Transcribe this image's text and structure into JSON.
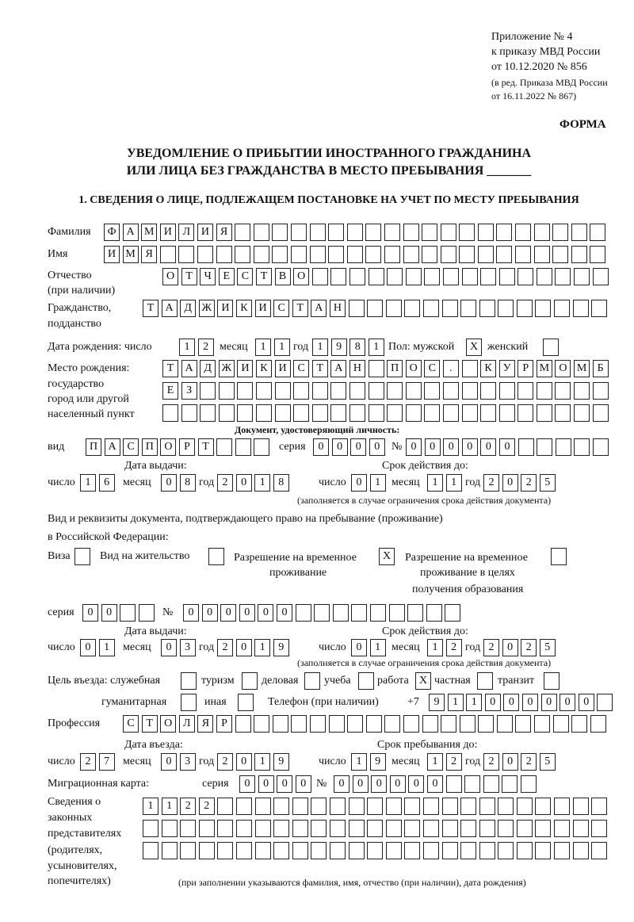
{
  "header": {
    "appendix": "Приложение № 4",
    "order": "к приказу МВД России",
    "date": "от 10.12.2020 № 856",
    "edition1": "(в ред. Приказа МВД России",
    "edition2": "от 16.11.2022 № 867)",
    "form_label": "ФОРМА",
    "title1": "УВЕДОМЛЕНИЕ О ПРИБЫТИИ ИНОСТРАННОГО ГРАЖДАНИНА",
    "title2": "ИЛИ ЛИЦА БЕЗ ГРАЖДАНСТВА В МЕСТО ПРЕБЫВАНИЯ _______",
    "section1": "1. СВЕДЕНИЯ О ЛИЦЕ, ПОДЛЕЖАЩЕМ ПОСТАНОВКЕ НА УЧЕТ ПО МЕСТУ ПРЕБЫВАНИЯ"
  },
  "labels": {
    "surname": "Фамилия",
    "name": "Имя",
    "patronymic1": "Отчество",
    "patronymic2": "(при наличии)",
    "citizenship1": "Гражданство,",
    "citizenship2": "подданство",
    "birth_date": "Дата рождения:  число",
    "day": "число",
    "month": "месяц",
    "year": "год",
    "sex": "Пол: мужской",
    "female": "женский",
    "birthplace1": "Место рождения:",
    "birthplace2": "государство",
    "birthplace3": "город или другой",
    "birthplace4": "населенный пункт",
    "id_doc": "Документ, удостоверяющий личность:",
    "kind": "вид",
    "series": "серия",
    "number": "№",
    "issue_date": "Дата выдачи:",
    "valid_until": "Срок действия до:",
    "validity_note": "(заполняется в случае ограничения срока действия документа)",
    "residence_doc1": "Вид и реквизиты документа, подтверждающего право на пребывание (проживание)",
    "residence_doc2": "в Российской Федерации:",
    "visa": "Виза",
    "residence_permit": "Вид на жительство",
    "temp_permit1": "Разрешение на временное",
    "temp_permit2": "проживание",
    "edu_permit1": "Разрешение на временное",
    "edu_permit2": "проживание в целях",
    "edu_permit3": "получения образования",
    "purpose": "Цель въезда: служебная",
    "tourism": "туризм",
    "business": "деловая",
    "study": "учеба",
    "work": "работа",
    "private": "частная",
    "transit": "транзит",
    "humanitarian": "гуманитарная",
    "other": "иная",
    "phone": "Телефон (при наличии)",
    "phone_prefix": "+7",
    "profession": "Профессия",
    "entry_date": "Дата въезда:",
    "stay_until": "Срок пребывания до:",
    "migration_card": "Миграционная карта:",
    "reps1": "Сведения о",
    "reps2": "законных",
    "reps3": "представителях",
    "reps4": "(родителях,",
    "reps5": "усыновителях,",
    "reps6": "попечителях)",
    "reps_note": "(при заполнении указываются фамилия, имя, отчество (при наличии), дата рождения)"
  },
  "person": {
    "surname": [
      "Ф",
      "А",
      "М",
      "И",
      "Л",
      "И",
      "Я"
    ],
    "name": [
      "И",
      "М",
      "Я"
    ],
    "patronymic": [
      "О",
      "Т",
      "Ч",
      "Е",
      "С",
      "Т",
      "В",
      "О"
    ],
    "citizenship": [
      "Т",
      "А",
      "Д",
      "Ж",
      "И",
      "К",
      "И",
      "С",
      "Т",
      "А",
      "Н"
    ],
    "birth_day": [
      "1",
      "2"
    ],
    "birth_month": [
      "1",
      "1"
    ],
    "birth_year": [
      "1",
      "9",
      "8",
      "1"
    ],
    "sex_male": [
      "X"
    ],
    "sex_female": [],
    "birthplace_row1": [
      "Т",
      "А",
      "Д",
      "Ж",
      "И",
      "К",
      "И",
      "С",
      "Т",
      "А",
      "Н",
      "",
      "П",
      "О",
      "С",
      ".",
      "",
      "К",
      "У",
      "Р",
      "М",
      "О",
      "М",
      "Б"
    ],
    "birthplace_row2": [
      "Е",
      "З"
    ],
    "birthplace_row3": []
  },
  "id_document": {
    "kind": [
      "П",
      "А",
      "С",
      "П",
      "О",
      "Р",
      "Т"
    ],
    "series": [
      "0",
      "0",
      "0",
      "0"
    ],
    "number": [
      "0",
      "0",
      "0",
      "0",
      "0",
      "0"
    ],
    "issue_day": [
      "1",
      "6"
    ],
    "issue_month": [
      "0",
      "8"
    ],
    "issue_year": [
      "2",
      "0",
      "1",
      "8"
    ],
    "valid_day": [
      "0",
      "1"
    ],
    "valid_month": [
      "1",
      "1"
    ],
    "valid_year": [
      "2",
      "0",
      "2",
      "5"
    ]
  },
  "residence_document": {
    "visa": [],
    "residence_permit": [],
    "temp_permit": [
      "X"
    ],
    "edu_permit": [],
    "series": [
      "0",
      "0"
    ],
    "number": [
      "0",
      "0",
      "0",
      "0",
      "0",
      "0"
    ],
    "issue_day": [
      "0",
      "1"
    ],
    "issue_month": [
      "0",
      "3"
    ],
    "issue_year": [
      "2",
      "0",
      "1",
      "9"
    ],
    "valid_day": [
      "0",
      "1"
    ],
    "valid_month": [
      "1",
      "2"
    ],
    "valid_year": [
      "2",
      "0",
      "2",
      "5"
    ]
  },
  "purpose": {
    "official": [],
    "tourism": [],
    "business": [],
    "study": [],
    "work": [
      "X"
    ],
    "private": [],
    "transit": [],
    "humanitarian": [],
    "other": []
  },
  "phone": [
    "9",
    "1",
    "1",
    "0",
    "0",
    "0",
    "0",
    "0",
    "0"
  ],
  "profession": [
    "С",
    "Т",
    "О",
    "Л",
    "Я",
    "Р"
  ],
  "entry": {
    "entry_day": [
      "2",
      "7"
    ],
    "entry_month": [
      "0",
      "3"
    ],
    "entry_year": [
      "2",
      "0",
      "1",
      "9"
    ],
    "stay_day": [
      "1",
      "9"
    ],
    "stay_month": [
      "1",
      "2"
    ],
    "stay_year": [
      "2",
      "0",
      "2",
      "5"
    ]
  },
  "migration_card": {
    "series": [
      "0",
      "0",
      "0",
      "0"
    ],
    "number": [
      "0",
      "0",
      "0",
      "0",
      "0",
      "0"
    ]
  },
  "representatives": {
    "row1": [
      "1",
      "1",
      "2",
      "2"
    ],
    "row2": [],
    "row3": []
  }
}
